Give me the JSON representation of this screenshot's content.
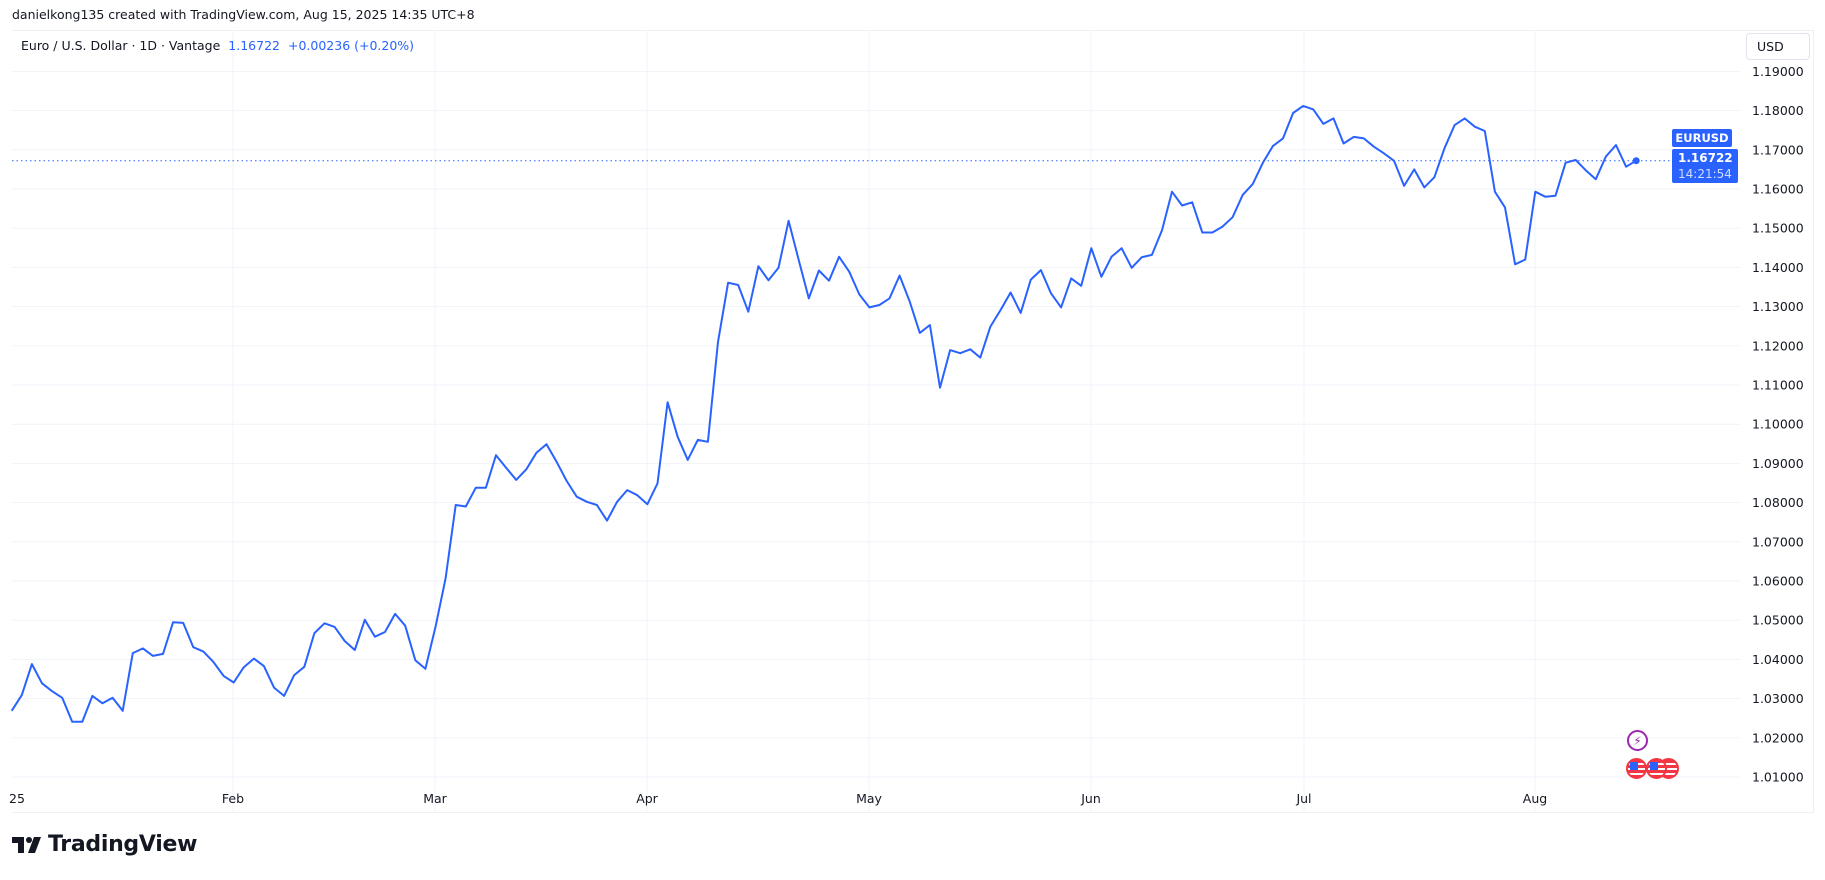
{
  "header": {
    "credit": "danielkong135 created with TradingView.com, Aug 15, 2025 14:35 UTC+8"
  },
  "legend": {
    "title": "Euro / U.S. Dollar · 1D · Vantage",
    "last": "1.16722",
    "change": "+0.00236 (+0.20%)"
  },
  "currency_button": "USD",
  "price_label": {
    "symbol": "EURUSD",
    "price": "1.16722",
    "countdown": "14:21:54"
  },
  "logo": {
    "text": "TradingView"
  },
  "colors": {
    "line": "#2962ff",
    "grid": "#f0f3fa",
    "text": "#131722",
    "event_lightning": "#9c27b0",
    "event_flag": "#f23645"
  },
  "icons": {
    "events": [
      "lightning-icon",
      "us-flag-icon",
      "us-flag-icon",
      "us-flag-icon"
    ]
  },
  "chart_data": {
    "type": "line",
    "symbol": "EURUSD",
    "interval": "1D",
    "ylim": [
      1.0,
      1.195
    ],
    "y_ticks": [
      "1.19000",
      "1.18000",
      "1.17000",
      "1.16000",
      "1.15000",
      "1.14000",
      "1.13000",
      "1.12000",
      "1.11000",
      "1.10000",
      "1.09000",
      "1.08000",
      "1.07000",
      "1.06000",
      "1.05000",
      "1.04000",
      "1.03000",
      "1.02000",
      "1.01000"
    ],
    "x_ticks": [
      "25",
      "Feb",
      "Mar",
      "Apr",
      "May",
      "Jun",
      "Jul",
      "Aug"
    ],
    "grid": true,
    "last_value": 1.16722,
    "values": [
      1.0269,
      1.0309,
      1.0388,
      1.0339,
      1.0319,
      1.0302,
      1.0241,
      1.0241,
      1.0307,
      1.0288,
      1.0302,
      1.0269,
      1.0416,
      1.0428,
      1.0409,
      1.0414,
      1.0495,
      1.0493,
      1.0431,
      1.042,
      1.0393,
      1.0358,
      1.0341,
      1.038,
      1.0402,
      1.0383,
      1.0328,
      1.0307,
      1.036,
      1.0381,
      1.0467,
      1.0492,
      1.0483,
      1.0447,
      1.0424,
      1.0501,
      1.0458,
      1.047,
      1.0516,
      1.0486,
      1.0398,
      1.0376,
      1.0483,
      1.0607,
      1.0794,
      1.079,
      1.0838,
      1.0838,
      1.0921,
      1.0889,
      1.0858,
      1.0885,
      1.0927,
      1.0949,
      1.0904,
      1.0855,
      1.0815,
      1.0802,
      1.0794,
      1.0754,
      1.0802,
      1.0832,
      1.0819,
      1.0796,
      1.0849,
      1.1056,
      1.0968,
      1.0909,
      1.096,
      1.0955,
      1.121,
      1.1361,
      1.1355,
      1.1287,
      1.1403,
      1.1367,
      1.1399,
      1.1519,
      1.1419,
      1.1321,
      1.1392,
      1.1366,
      1.1427,
      1.1389,
      1.1331,
      1.1298,
      1.1304,
      1.1321,
      1.1379,
      1.1313,
      1.1233,
      1.1253,
      1.1093,
      1.1189,
      1.1181,
      1.1191,
      1.117,
      1.1249,
      1.1291,
      1.1336,
      1.1284,
      1.1369,
      1.1393,
      1.1334,
      1.1298,
      1.1372,
      1.1353,
      1.1449,
      1.1376,
      1.1427,
      1.1449,
      1.1399,
      1.1426,
      1.1432,
      1.1495,
      1.1593,
      1.1558,
      1.1566,
      1.1489,
      1.1489,
      1.1504,
      1.1528,
      1.1585,
      1.1613,
      1.1667,
      1.171,
      1.1729,
      1.1794,
      1.1812,
      1.1803,
      1.1766,
      1.178,
      1.1716,
      1.1733,
      1.1729,
      1.1708,
      1.1691,
      1.1672,
      1.1608,
      1.165,
      1.1604,
      1.163,
      1.1704,
      1.1763,
      1.178,
      1.1759,
      1.1748,
      1.1593,
      1.1553,
      1.1408,
      1.142,
      1.1593,
      1.158,
      1.1583,
      1.1667,
      1.1674,
      1.1648,
      1.1625,
      1.1683,
      1.1712,
      1.1657,
      1.16722
    ]
  }
}
